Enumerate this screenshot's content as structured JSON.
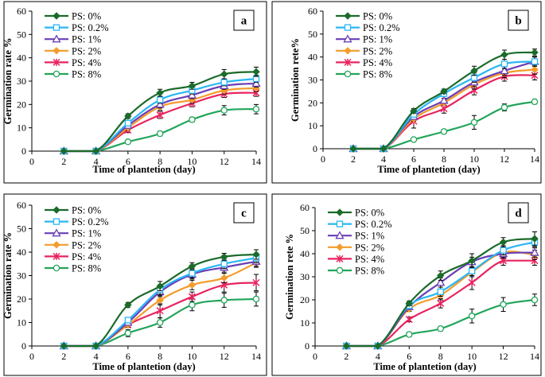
{
  "chart_data": [
    {
      "type": "line",
      "panel": "a",
      "xlabel": "Time of plantetion (day)",
      "ylabel": "Germination rate %",
      "xlim": [
        0,
        14
      ],
      "ylim": [
        0,
        60
      ],
      "xticks": [
        0,
        2,
        4,
        6,
        8,
        10,
        12,
        14
      ],
      "yticks": [
        0,
        10,
        20,
        30,
        40,
        50,
        60
      ],
      "legend_position": "top-left",
      "x": [
        2,
        4,
        6,
        8,
        10,
        12,
        14
      ],
      "series": [
        {
          "name": "PS: 0%",
          "color": "#1b6b2a",
          "marker": "diamond",
          "values": [
            0,
            0,
            15,
            25,
            28,
            33,
            34
          ],
          "errors": [
            0,
            0,
            1,
            1.5,
            1.5,
            2,
            2
          ]
        },
        {
          "name": "PS: 0.2%",
          "color": "#29b6f6",
          "marker": "square",
          "values": [
            0,
            0,
            12,
            22,
            26,
            29.5,
            31
          ],
          "errors": [
            0,
            0,
            1,
            1.5,
            1.5,
            1.5,
            1.5
          ]
        },
        {
          "name": "PS: 1%",
          "color": "#6a3fb5",
          "marker": "triangle",
          "values": [
            0,
            0,
            11,
            20,
            24,
            28,
            29
          ],
          "errors": [
            0,
            0,
            1,
            1.5,
            1.5,
            1.5,
            1.5
          ]
        },
        {
          "name": "PS: 2%",
          "color": "#f39c2c",
          "marker": "diamond",
          "values": [
            0,
            0,
            10,
            19,
            22,
            26,
            27
          ],
          "errors": [
            0,
            0,
            1,
            1.5,
            1.5,
            1.5,
            1.5
          ]
        },
        {
          "name": "PS: 4%",
          "color": "#e8245f",
          "marker": "star",
          "values": [
            0,
            0,
            9,
            15.5,
            20.5,
            24.5,
            25
          ],
          "errors": [
            0,
            0,
            1,
            1.5,
            1.5,
            1.5,
            1.5
          ]
        },
        {
          "name": "PS: 8%",
          "color": "#22a55a",
          "marker": "circle",
          "values": [
            0,
            0,
            4,
            7.5,
            13.5,
            17.5,
            18
          ],
          "errors": [
            0,
            0,
            0.5,
            1,
            1,
            2,
            2
          ]
        }
      ]
    },
    {
      "type": "line",
      "panel": "b",
      "xlabel": "Time of plantetion (day)",
      "ylabel": "Germination  rete%",
      "xlim": [
        0,
        14
      ],
      "ylim": [
        0,
        60
      ],
      "xticks": [
        0,
        2,
        4,
        6,
        8,
        10,
        12,
        14
      ],
      "yticks": [
        0,
        10,
        20,
        30,
        40,
        50,
        60
      ],
      "legend_position": "top-left",
      "x": [
        2,
        4,
        6,
        8,
        10,
        12,
        14
      ],
      "series": [
        {
          "name": "PS: 0%",
          "color": "#1b6b2a",
          "marker": "diamond",
          "values": [
            0,
            0,
            16.5,
            25,
            34,
            41,
            42
          ],
          "errors": [
            0,
            0,
            1,
            1,
            2,
            2,
            1.5
          ]
        },
        {
          "name": "PS: 0.2%",
          "color": "#29b6f6",
          "marker": "square",
          "values": [
            0,
            0,
            15,
            24,
            31,
            37,
            38
          ],
          "errors": [
            0,
            0,
            1,
            1,
            2,
            2,
            2
          ]
        },
        {
          "name": "PS: 1%",
          "color": "#6a3fb5",
          "marker": "triangle",
          "values": [
            0,
            0,
            14,
            21,
            29,
            34,
            38
          ],
          "errors": [
            0,
            0,
            1,
            1,
            2,
            2,
            2
          ]
        },
        {
          "name": "PS: 2%",
          "color": "#f39c2c",
          "marker": "diamond",
          "values": [
            0,
            0,
            13,
            20,
            28,
            33,
            34.5
          ],
          "errors": [
            0,
            0,
            1,
            1,
            2,
            2,
            2
          ]
        },
        {
          "name": "PS: 4%",
          "color": "#e8245f",
          "marker": "star",
          "values": [
            0,
            0,
            12,
            17.5,
            25.5,
            31.5,
            32
          ],
          "errors": [
            0,
            0,
            3,
            2,
            2,
            2,
            2
          ]
        },
        {
          "name": "PS: 8%",
          "color": "#22a55a",
          "marker": "circle",
          "values": [
            0,
            0,
            4,
            7.5,
            11.5,
            18,
            20.5
          ],
          "errors": [
            0,
            0,
            0.5,
            1,
            3,
            1.5,
            1
          ]
        }
      ]
    },
    {
      "type": "line",
      "panel": "c",
      "xlabel": "Time of plantetion (day)",
      "ylabel": "Germination rate %",
      "xlim": [
        0,
        14
      ],
      "ylim": [
        0,
        60
      ],
      "xticks": [
        0,
        2,
        4,
        6,
        8,
        10,
        12,
        14
      ],
      "yticks": [
        0,
        10,
        20,
        30,
        40,
        50,
        60
      ],
      "legend_position": "top-left",
      "x": [
        2,
        4,
        6,
        8,
        10,
        12,
        14
      ],
      "series": [
        {
          "name": "PS: 0%",
          "color": "#1b6b2a",
          "marker": "diamond",
          "values": [
            0,
            0,
            17.5,
            25.5,
            34,
            38,
            39
          ],
          "errors": [
            0,
            0,
            1,
            2,
            1.5,
            1.5,
            2
          ]
        },
        {
          "name": "PS: 0.2%",
          "color": "#29b6f6",
          "marker": "square",
          "values": [
            0,
            0,
            11,
            24,
            31,
            35,
            37.5
          ],
          "errors": [
            0,
            0,
            1,
            2,
            2,
            2,
            2
          ]
        },
        {
          "name": "PS: 1%",
          "color": "#6a3fb5",
          "marker": "triangle",
          "values": [
            0,
            0,
            10,
            23,
            30.5,
            33.5,
            36
          ],
          "errors": [
            0,
            0,
            1,
            2,
            2,
            2,
            2
          ]
        },
        {
          "name": "PS: 2%",
          "color": "#f39c2c",
          "marker": "diamond",
          "values": [
            0,
            0,
            9,
            19.5,
            26,
            29,
            35.5
          ],
          "errors": [
            0,
            0,
            1,
            2,
            2,
            2,
            2
          ]
        },
        {
          "name": "PS: 4%",
          "color": "#e8245f",
          "marker": "star",
          "values": [
            0,
            0,
            9,
            15,
            21,
            26,
            27
          ],
          "errors": [
            0,
            0,
            1,
            3,
            2,
            3,
            3.5
          ]
        },
        {
          "name": "PS: 8%",
          "color": "#22a55a",
          "marker": "circle",
          "values": [
            0,
            0,
            5.5,
            10,
            17.5,
            19.5,
            20
          ],
          "errors": [
            0,
            0,
            1.5,
            2,
            2.5,
            3,
            3
          ]
        }
      ]
    },
    {
      "type": "line",
      "panel": "d",
      "xlabel": "Time of plantetion (day)",
      "ylabel": "Germination rete %",
      "xlim": [
        0,
        14
      ],
      "ylim": [
        0,
        60
      ],
      "xticks": [
        0,
        2,
        4,
        6,
        8,
        10,
        12,
        14
      ],
      "yticks": [
        0,
        10,
        20,
        30,
        40,
        50,
        60
      ],
      "legend_position": "top-left",
      "x": [
        2,
        4,
        6,
        8,
        10,
        12,
        14
      ],
      "series": [
        {
          "name": "PS: 0%",
          "color": "#1b6b2a",
          "marker": "diamond",
          "values": [
            0,
            0,
            18.5,
            30.5,
            37,
            45,
            46.5
          ],
          "errors": [
            0,
            0,
            1,
            2,
            3,
            2,
            3
          ]
        },
        {
          "name": "PS: 0.2%",
          "color": "#29b6f6",
          "marker": "square",
          "values": [
            0,
            0,
            17.5,
            23.5,
            32.5,
            41.5,
            45
          ],
          "errors": [
            0,
            0,
            1,
            2,
            2,
            2,
            2
          ]
        },
        {
          "name": "PS: 1%",
          "color": "#6a3fb5",
          "marker": "triangle",
          "values": [
            0,
            0,
            17,
            27.5,
            36.5,
            40,
            40.5
          ],
          "errors": [
            0,
            0,
            1,
            2,
            2,
            2,
            2
          ]
        },
        {
          "name": "PS: 2%",
          "color": "#f39c2c",
          "marker": "diamond",
          "values": [
            0,
            0,
            16,
            22,
            32,
            40.5,
            39.5
          ],
          "errors": [
            0,
            0,
            1,
            2,
            2,
            2,
            2
          ]
        },
        {
          "name": "PS: 4%",
          "color": "#e8245f",
          "marker": "star",
          "values": [
            0,
            0,
            11.5,
            18.5,
            27.5,
            37,
            37
          ],
          "errors": [
            0,
            0,
            1,
            2,
            3,
            2,
            2
          ]
        },
        {
          "name": "PS: 8%",
          "color": "#22a55a",
          "marker": "circle",
          "values": [
            0,
            0,
            5,
            7.5,
            13,
            18,
            20
          ],
          "errors": [
            0,
            0,
            1,
            1,
            3,
            3,
            2.5
          ]
        }
      ]
    }
  ]
}
